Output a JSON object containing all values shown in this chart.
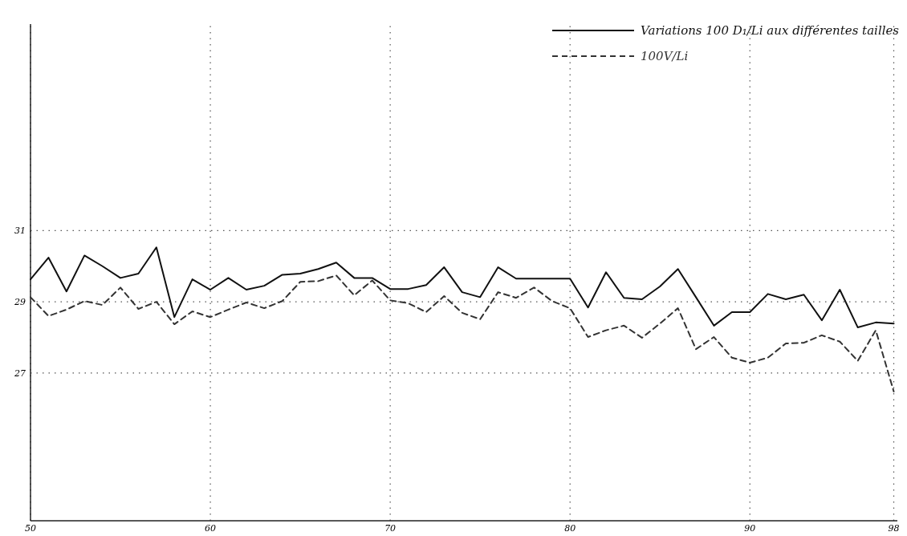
{
  "chart_data": {
    "type": "line",
    "x": [
      50,
      51,
      52,
      53,
      54,
      55,
      56,
      57,
      58,
      59,
      60,
      61,
      62,
      63,
      64,
      65,
      66,
      67,
      68,
      69,
      70,
      71,
      72,
      73,
      74,
      75,
      76,
      77,
      78,
      79,
      80,
      81,
      82,
      83,
      84,
      85,
      86,
      87,
      88,
      89,
      90,
      91,
      92,
      93,
      94,
      95,
      96,
      97,
      98
    ],
    "series": [
      {
        "name": "Variations 100 D₁/Li aux différentes tailles",
        "color": "#111111",
        "line_style": "solid",
        "values": [
          29.63,
          30.24,
          29.29,
          30.3,
          30.0,
          29.67,
          29.79,
          30.53,
          28.57,
          29.63,
          29.34,
          29.67,
          29.34,
          29.45,
          29.76,
          29.79,
          29.92,
          30.1,
          29.67,
          29.67,
          29.36,
          29.36,
          29.47,
          29.97,
          29.27,
          29.13,
          29.97,
          29.65,
          29.65,
          29.65,
          29.65,
          28.84,
          29.83,
          29.11,
          29.07,
          29.43,
          29.92,
          29.13,
          28.33,
          28.71,
          28.71,
          29.22,
          29.07,
          29.2,
          28.48,
          29.34,
          28.28,
          28.42,
          28.39
        ]
      },
      {
        "name": "100V/Li",
        "color": "#333333",
        "line_style": "dashed",
        "values": [
          29.13,
          28.6,
          28.78,
          29.02,
          28.91,
          29.4,
          28.8,
          29.0,
          28.37,
          28.73,
          28.57,
          28.78,
          28.98,
          28.82,
          29.02,
          29.56,
          29.58,
          29.74,
          29.18,
          29.6,
          29.04,
          28.96,
          28.71,
          29.16,
          28.69,
          28.51,
          29.27,
          29.11,
          29.4,
          29.02,
          28.82,
          28.01,
          28.2,
          28.33,
          27.99,
          28.39,
          28.82,
          27.67,
          28.01,
          27.43,
          27.29,
          27.43,
          27.83,
          27.85,
          28.06,
          27.88,
          27.34,
          28.2,
          26.48
        ]
      }
    ],
    "xlim": [
      50,
      98.2
    ],
    "xticks": [
      50,
      60,
      70,
      80,
      90,
      98
    ],
    "ylim": [
      22.85,
      36.8
    ],
    "yticks": [
      27,
      29,
      31
    ],
    "grid": true,
    "legend": "top right",
    "marker": "none"
  }
}
